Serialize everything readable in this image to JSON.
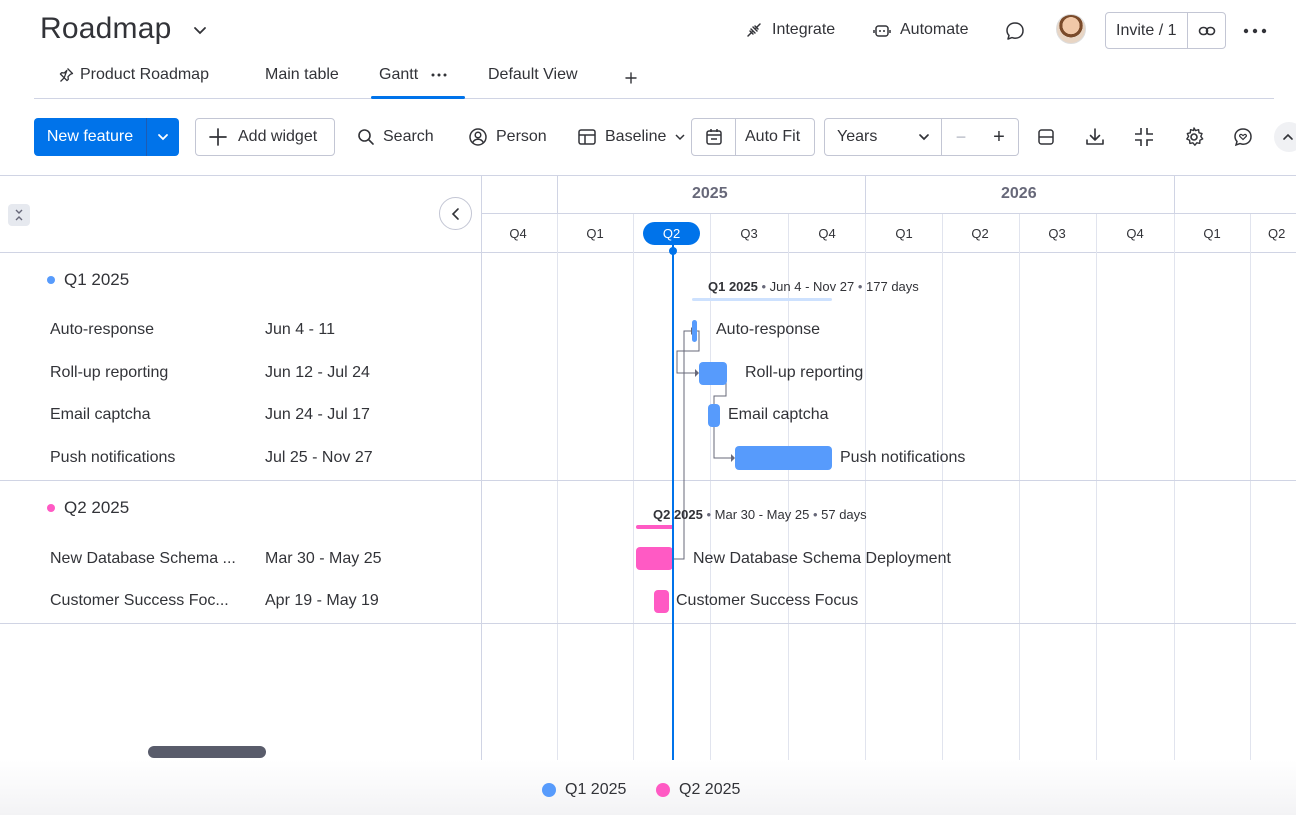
{
  "header": {
    "title": "Roadmap",
    "integrate_label": "Integrate",
    "automate_label": "Automate",
    "invite_label": "Invite / 1"
  },
  "tabs": [
    {
      "label": "Product Roadmap"
    },
    {
      "label": "Main table"
    },
    {
      "label": "Gantt",
      "active": true
    },
    {
      "label": "Default View"
    }
  ],
  "toolbar": {
    "new_feature_label": "New feature",
    "add_widget_label": "Add widget",
    "search_label": "Search",
    "person_label": "Person",
    "baseline_label": "Baseline",
    "auto_fit_label": "Auto Fit",
    "zoom_label": "Years",
    "zoom_minus": "−",
    "zoom_plus": "+"
  },
  "timeline": {
    "years": [
      "2025",
      "2026"
    ],
    "quarters": [
      "Q4",
      "Q1",
      "Q2",
      "Q3",
      "Q4",
      "Q1",
      "Q2",
      "Q3",
      "Q4",
      "Q1",
      "Q2"
    ],
    "today_quarter": "Q2"
  },
  "groups": [
    {
      "name": "Q1 2025",
      "color": "#579bfc",
      "summary_dates": "Jun 4 - Nov 27",
      "summary_days": "177 days",
      "items": [
        {
          "name": "Auto-response",
          "full_name": "Auto-response",
          "dates": "Jun 4 - 11"
        },
        {
          "name": "Roll-up reporting",
          "full_name": "Roll-up reporting",
          "dates": "Jun 12 - Jul 24"
        },
        {
          "name": "Email captcha",
          "full_name": "Email captcha",
          "dates": "Jun 24 - Jul 17"
        },
        {
          "name": "Push notifications",
          "full_name": "Push notifications",
          "dates": "Jul 25 - Nov 27"
        }
      ]
    },
    {
      "name": "Q2 2025",
      "color": "#ff5ac4",
      "summary_dates": "Mar 30 - May 25",
      "summary_days": "57 days",
      "items": [
        {
          "name": "New Database Schema ...",
          "full_name": "New Database Schema Deployment",
          "dates": "Mar 30 - May 25"
        },
        {
          "name": "Customer Success Foc...",
          "full_name": "Customer Success Focus",
          "dates": "Apr 19 - May 19"
        }
      ]
    }
  ],
  "legend": [
    {
      "label": "Q1 2025",
      "color": "#579bfc"
    },
    {
      "label": "Q2 2025",
      "color": "#ff5ac4"
    }
  ],
  "icons": {
    "integrate": "integrate-icon",
    "automate": "robot-icon",
    "updates": "chat-bubble-icon",
    "link": "link-icon",
    "more": "more-horizontal-icon",
    "pin": "pin-icon"
  }
}
